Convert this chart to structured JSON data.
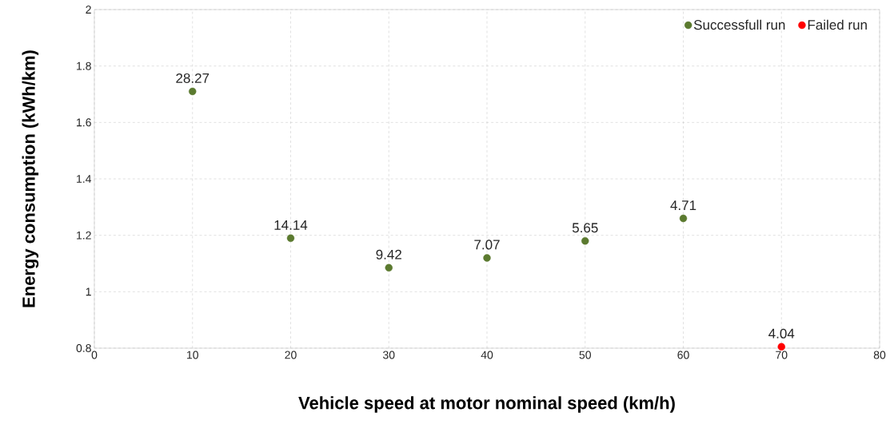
{
  "chart_data": {
    "type": "scatter",
    "xlabel": "Vehicle speed at motor nominal speed (km/h)",
    "ylabel": "Energy consumption (kWh/km)",
    "series": [
      {
        "name": "Successfull run",
        "color": "#5b7a2f",
        "x": [
          10,
          20,
          30,
          40,
          50,
          60
        ],
        "values": [
          1.71,
          1.19,
          1.085,
          1.12,
          1.18,
          1.26
        ]
      },
      {
        "name": "Failed run",
        "color": "#ff0000",
        "x": [
          70
        ],
        "values": [
          0.805
        ]
      }
    ],
    "annotations": [
      {
        "text": "28.27",
        "x": 10,
        "y": 1.71
      },
      {
        "text": "14.14",
        "x": 20,
        "y": 1.19
      },
      {
        "text": "9.42",
        "x": 30,
        "y": 1.085
      },
      {
        "text": "7.07",
        "x": 40,
        "y": 1.12
      },
      {
        "text": "5.65",
        "x": 50,
        "y": 1.18
      },
      {
        "text": "4.71",
        "x": 60,
        "y": 1.26
      },
      {
        "text": "4.04",
        "x": 70,
        "y": 0.805
      }
    ],
    "xlim": [
      0,
      80
    ],
    "xticks": [
      0,
      10,
      20,
      30,
      40,
      50,
      60,
      70,
      80
    ],
    "ylim": [
      0.8,
      2
    ],
    "yticks": [
      0.8,
      1,
      1.2,
      1.4,
      1.6,
      1.8,
      2
    ],
    "grid": true,
    "legend": "top right",
    "marker": "circle"
  }
}
